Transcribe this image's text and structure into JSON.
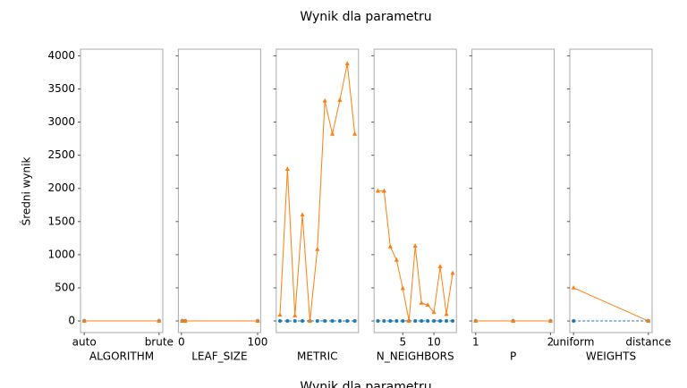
{
  "figure": {
    "title": "Wynik dla parametru",
    "ylabel": "Średni wynik",
    "caption": "Wynik dla parametru",
    "ylim": [
      -175,
      4100
    ],
    "yticks": [
      0,
      500,
      1000,
      1500,
      2000,
      2500,
      3000,
      3500,
      4000
    ]
  },
  "chart_data": [
    {
      "type": "line",
      "xlabel": "ALGORITHM",
      "categories": [
        "auto",
        "brute"
      ],
      "series": [
        {
          "color": "#1f77b4",
          "marker": "circle",
          "linestyle": "dashed",
          "values": [
            0,
            0
          ]
        },
        {
          "color": "#ff7f0e",
          "marker": "triangle",
          "linestyle": "solid",
          "values": [
            0,
            0
          ]
        }
      ]
    },
    {
      "type": "line",
      "xlabel": "LEAF_SIZE",
      "x": [
        1,
        5,
        100
      ],
      "xlim": [
        -4,
        104
      ],
      "xticks": [
        0,
        100
      ],
      "series": [
        {
          "color": "#1f77b4",
          "marker": "circle",
          "linestyle": "dashed",
          "values": [
            0,
            0,
            0
          ]
        },
        {
          "color": "#ff7f0e",
          "marker": "triangle",
          "linestyle": "solid",
          "values": [
            0,
            0,
            0
          ]
        }
      ]
    },
    {
      "type": "line",
      "xlabel": "METRIC",
      "categories": [
        null,
        null,
        null,
        null,
        null,
        null,
        null,
        null,
        null,
        null,
        null
      ],
      "series": [
        {
          "color": "#1f77b4",
          "marker": "circle",
          "linestyle": "dashed",
          "values": [
            0,
            0,
            0,
            0,
            0,
            0,
            0,
            0,
            0,
            0,
            0
          ]
        },
        {
          "color": "#ff7f0e",
          "marker": "triangle",
          "linestyle": "solid",
          "values": [
            90,
            2290,
            80,
            1600,
            0,
            1080,
            3320,
            2820,
            3330,
            3880,
            2820
          ]
        }
      ]
    },
    {
      "type": "line",
      "xlabel": "N_NEIGHBORS",
      "x": [
        1,
        2,
        3,
        4,
        5,
        6,
        7,
        8,
        9,
        10,
        11,
        12,
        13
      ],
      "xlim": [
        0.4,
        13.6
      ],
      "xticks": [
        5,
        10
      ],
      "series": [
        {
          "color": "#1f77b4",
          "marker": "circle",
          "linestyle": "dashed",
          "values": [
            0,
            0,
            0,
            0,
            0,
            0,
            0,
            0,
            0,
            0,
            0,
            0,
            0
          ]
        },
        {
          "color": "#ff7f0e",
          "marker": "triangle",
          "linestyle": "solid",
          "values": [
            1960,
            1960,
            1120,
            920,
            490,
            0,
            1130,
            270,
            240,
            130,
            820,
            100,
            720
          ]
        }
      ]
    },
    {
      "type": "line",
      "xlabel": "P",
      "x": [
        1,
        1.5,
        2
      ],
      "xlim": [
        0.95,
        2.05
      ],
      "xticks": [
        1,
        2
      ],
      "series": [
        {
          "color": "#1f77b4",
          "marker": "circle",
          "linestyle": "dashed",
          "values": [
            0,
            0,
            0
          ]
        },
        {
          "color": "#ff7f0e",
          "marker": "triangle",
          "linestyle": "solid",
          "values": [
            0,
            0,
            0
          ]
        }
      ]
    },
    {
      "type": "line",
      "xlabel": "WEIGHTS",
      "categories": [
        "uniform",
        "distance"
      ],
      "series": [
        {
          "color": "#1f77b4",
          "marker": "circle",
          "linestyle": "dashed",
          "values": [
            0,
            0
          ]
        },
        {
          "color": "#ff7f0e",
          "marker": "triangle",
          "linestyle": "solid",
          "values": [
            500,
            0
          ]
        }
      ]
    }
  ]
}
